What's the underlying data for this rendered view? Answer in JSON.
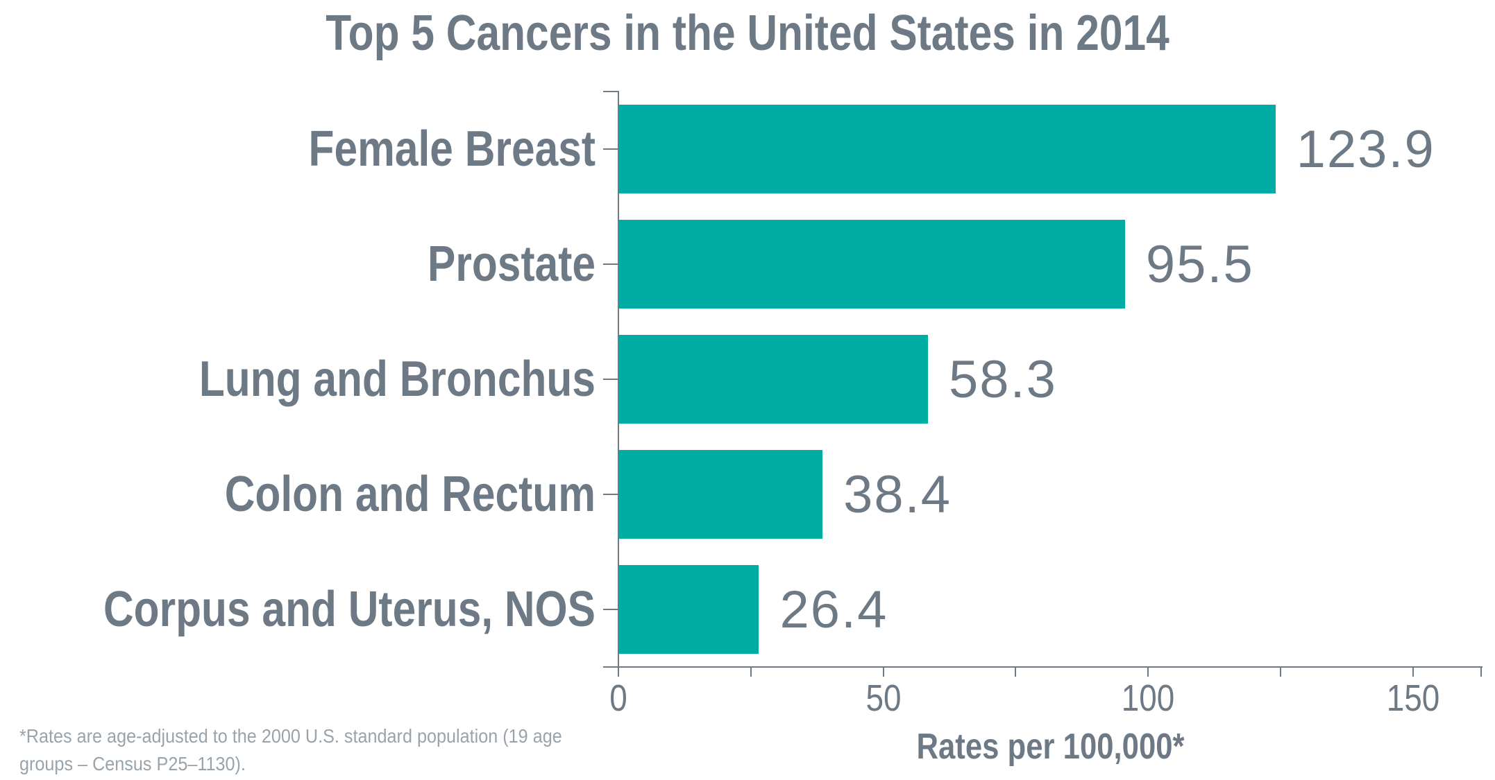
{
  "chart_data": {
    "type": "bar",
    "orientation": "horizontal",
    "title": "Top 5 Cancers in the United States in 2014",
    "categories": [
      "Female Breast",
      "Prostate",
      "Lung and Bronchus",
      "Colon and Rectum",
      "Corpus and Uterus, NOS"
    ],
    "values": [
      123.9,
      95.5,
      58.3,
      38.4,
      26.4
    ],
    "value_labels": [
      "123.9",
      "95.5",
      "58.3",
      "38.4",
      "26.4"
    ],
    "xlabel": "Rates per 100,000*",
    "xlim": [
      0,
      163
    ],
    "xticks": [
      {
        "v": 0,
        "label": "0"
      },
      {
        "v": 25,
        "label": ""
      },
      {
        "v": 50,
        "label": "50"
      },
      {
        "v": 75,
        "label": ""
      },
      {
        "v": 100,
        "label": "100"
      },
      {
        "v": 125,
        "label": ""
      },
      {
        "v": 150,
        "label": "150"
      }
    ],
    "grid": false,
    "legend": false,
    "colors": {
      "bar": "#00ada4",
      "text": "#6d7a86",
      "footnote": "#99a3ab",
      "axis": "#6f7984"
    }
  },
  "footnote": {
    "lines": [
      "*Rates are age-adjusted to the 2000 U.S. standard population (19 age",
      "groups – Census P25–1130)."
    ]
  }
}
